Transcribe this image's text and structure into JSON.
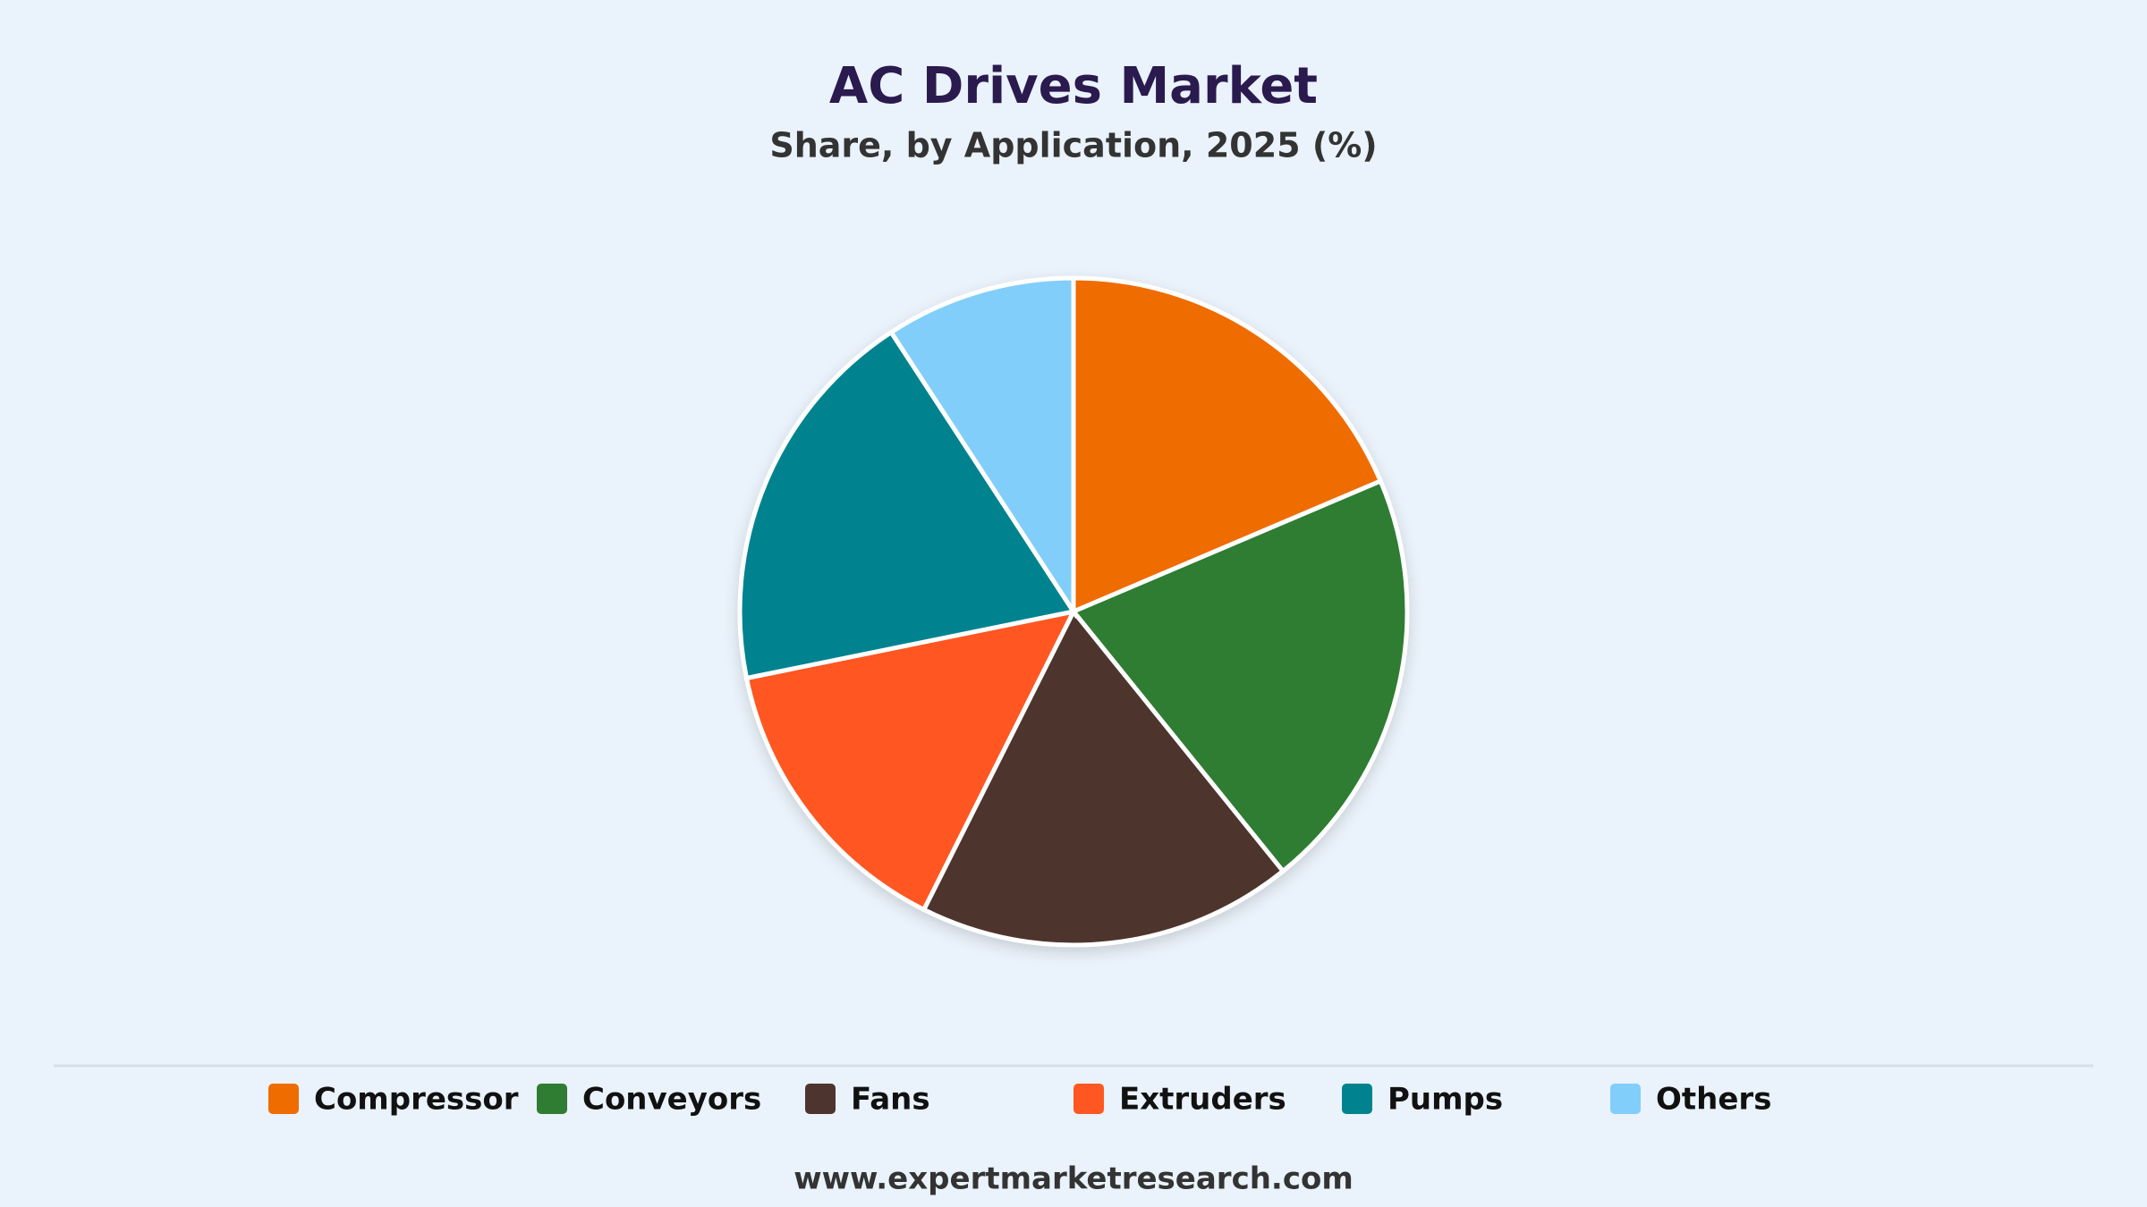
{
  "chart_data": {
    "type": "pie",
    "title": "AC Drives Market",
    "subtitle": "Share, by Application, 2025 (%)",
    "categories": [
      "Compressor",
      "Conveyors",
      "Fans",
      "Extruders",
      "Pumps",
      "Others"
    ],
    "values": [
      18.6,
      20.6,
      18.2,
      14.4,
      19.0,
      9.2
    ],
    "colors": [
      "#ef6c00",
      "#2e7d32",
      "#4e342e",
      "#ff5722",
      "#00838f",
      "#81cefa"
    ],
    "legend": "bottom",
    "source": "www.expertmarketresearch.com"
  }
}
